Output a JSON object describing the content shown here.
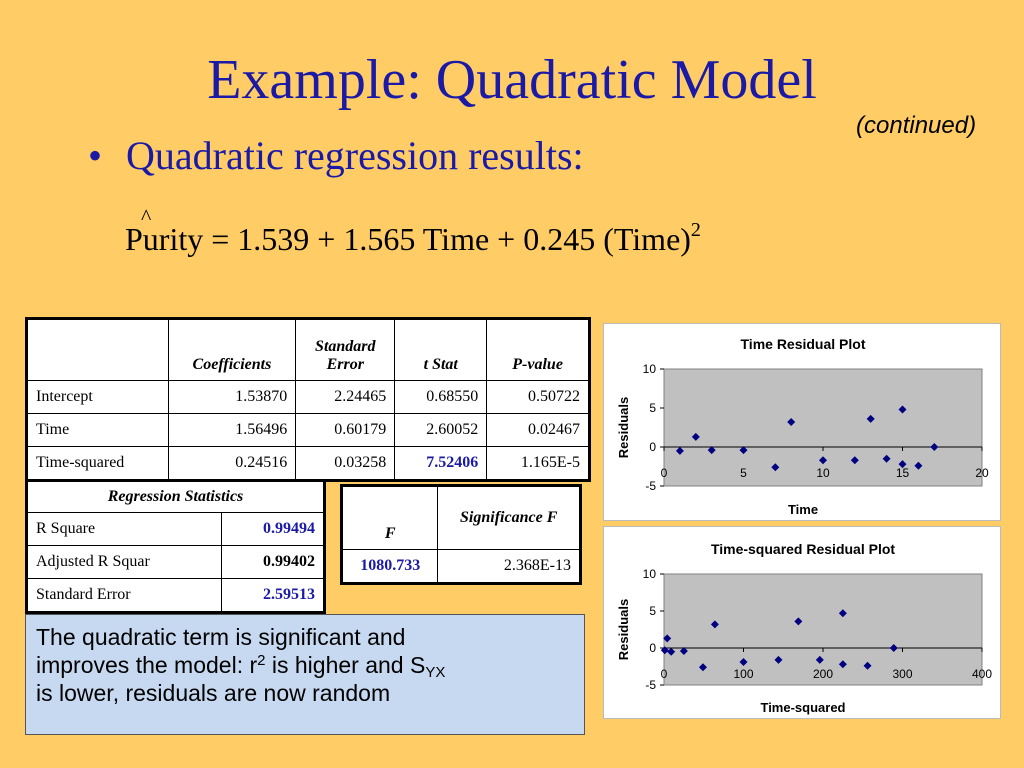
{
  "slide": {
    "title": "Example: Quadratic Model",
    "subtitle": "(continued)",
    "bullet": "Quadratic regression results:",
    "equation": {
      "hat": "^",
      "lhs": "Purity = 1.539 + 1.565 Time + 0.245 (Time)",
      "exponent": "2"
    }
  },
  "coef_table": {
    "headers": [
      "",
      "Coefficients",
      "Standard Error",
      "t Stat",
      "P-value"
    ],
    "rows": [
      [
        "Intercept",
        "1.53870",
        "2.24465",
        "0.68550",
        "0.50722"
      ],
      [
        "Time",
        "1.56496",
        "0.60179",
        "2.60052",
        "0.02467"
      ],
      [
        "Time-squared",
        "0.24516",
        "0.03258",
        "7.52406",
        "1.165E-5"
      ]
    ]
  },
  "regression_stats": {
    "title": "Regression Statistics",
    "rows": [
      [
        "R Square",
        "0.99494"
      ],
      [
        "Adjusted R Squar",
        "0.99402"
      ],
      [
        "Standard Error",
        "2.59513"
      ]
    ]
  },
  "anova": {
    "headers": [
      "F",
      "Significance F"
    ],
    "row": [
      "1080.733",
      "2.368E-13"
    ]
  },
  "note": {
    "line1": "The quadratic term is significant and",
    "line2_pre": "improves the model:  r",
    "line2_sup": "2",
    "line2_mid": " is higher and S",
    "line2_sub": "YX",
    "line3": "is lower, residuals are now random"
  },
  "chart_data": [
    {
      "type": "scatter",
      "title": "Time  Residual Plot",
      "xlabel": "Time",
      "ylabel": "Residuals",
      "xlim": [
        0,
        20
      ],
      "ylim": [
        -5,
        10
      ],
      "xticks": [
        0,
        5,
        10,
        15,
        20
      ],
      "yticks": [
        10,
        5,
        0,
        -5
      ],
      "grid": false,
      "plot_area_color": "#C0C0C0",
      "marker_color": "#000080",
      "x": [
        1,
        2,
        3,
        5,
        7,
        8,
        10,
        12,
        13,
        14,
        15,
        15,
        16,
        17
      ],
      "y": [
        -0.5,
        1.3,
        -0.4,
        -0.4,
        -2.6,
        3.2,
        -1.7,
        -1.7,
        3.6,
        -1.5,
        4.8,
        -2.2,
        -2.4,
        0.0
      ]
    },
    {
      "type": "scatter",
      "title": "Time-squared  Residual Plot",
      "xlabel": "Time-squared",
      "ylabel": "Residuals",
      "xlim": [
        0,
        400
      ],
      "ylim": [
        -5,
        10
      ],
      "xticks": [
        0,
        100,
        200,
        300,
        400
      ],
      "yticks": [
        10,
        5,
        0,
        -5
      ],
      "grid": false,
      "plot_area_color": "#C0C0C0",
      "marker_color": "#000080",
      "x": [
        1,
        4,
        9,
        25,
        49,
        64,
        100,
        144,
        169,
        196,
        225,
        225,
        256,
        289
      ],
      "y": [
        -0.3,
        1.3,
        -0.5,
        -0.4,
        -2.6,
        3.2,
        -1.9,
        -1.6,
        3.6,
        -1.6,
        4.7,
        -2.2,
        -2.4,
        0.0
      ]
    }
  ]
}
